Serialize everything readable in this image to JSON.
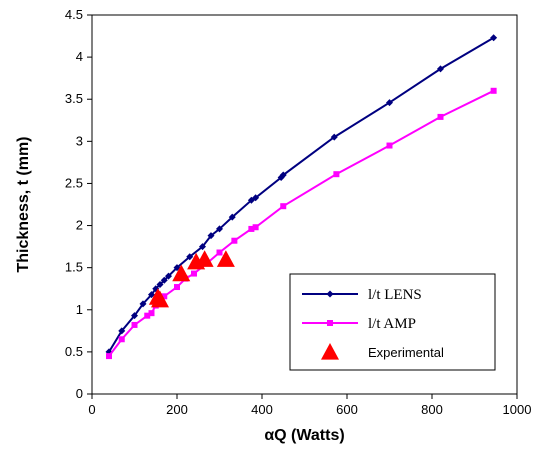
{
  "chart_data": {
    "type": "line",
    "xlabel": "αQ (Watts)",
    "ylabel": "Thickness, t (mm)",
    "xlim": [
      0,
      1000
    ],
    "ylim": [
      0,
      4.5
    ],
    "x_ticks": [
      "0",
      "200",
      "400",
      "600",
      "800",
      "1000"
    ],
    "y_ticks": [
      "0",
      "0.5",
      "1",
      "1.5",
      "2",
      "2.5",
      "3",
      "3.5",
      "4",
      "4.5"
    ],
    "grid": false,
    "legend_position": "bottom-right",
    "series": [
      {
        "name": "l/t LENS",
        "color": "#000080",
        "marker": "diamond",
        "points": [
          [
            40,
            0.5
          ],
          [
            70,
            0.75
          ],
          [
            100,
            0.93
          ],
          [
            120,
            1.07
          ],
          [
            140,
            1.18
          ],
          [
            150,
            1.25
          ],
          [
            160,
            1.3
          ],
          [
            170,
            1.35
          ],
          [
            180,
            1.4
          ],
          [
            200,
            1.5
          ],
          [
            230,
            1.63
          ],
          [
            260,
            1.75
          ],
          [
            280,
            1.88
          ],
          [
            300,
            1.96
          ],
          [
            330,
            2.1
          ],
          [
            375,
            2.3
          ],
          [
            385,
            2.33
          ],
          [
            445,
            2.57
          ],
          [
            450,
            2.6
          ],
          [
            570,
            3.05
          ],
          [
            700,
            3.46
          ],
          [
            820,
            3.86
          ],
          [
            945,
            4.23
          ]
        ]
      },
      {
        "name": "l/t AMP",
        "color": "#FF00FF",
        "marker": "square",
        "points": [
          [
            40,
            0.45
          ],
          [
            70,
            0.65
          ],
          [
            100,
            0.82
          ],
          [
            130,
            0.93
          ],
          [
            140,
            0.96
          ],
          [
            150,
            1.05
          ],
          [
            160,
            1.1
          ],
          [
            170,
            1.16
          ],
          [
            200,
            1.27
          ],
          [
            220,
            1.37
          ],
          [
            240,
            1.43
          ],
          [
            270,
            1.55
          ],
          [
            300,
            1.68
          ],
          [
            335,
            1.82
          ],
          [
            375,
            1.96
          ],
          [
            385,
            1.98
          ],
          [
            450,
            2.23
          ],
          [
            575,
            2.61
          ],
          [
            700,
            2.95
          ],
          [
            820,
            3.29
          ],
          [
            945,
            3.6
          ]
        ]
      },
      {
        "name": "Experimental",
        "color": "#FF0000",
        "marker": "triangle",
        "points": [
          [
            155,
            1.15
          ],
          [
            160,
            1.12
          ],
          [
            210,
            1.43
          ],
          [
            245,
            1.57
          ],
          [
            265,
            1.6
          ],
          [
            315,
            1.6
          ]
        ]
      }
    ]
  }
}
